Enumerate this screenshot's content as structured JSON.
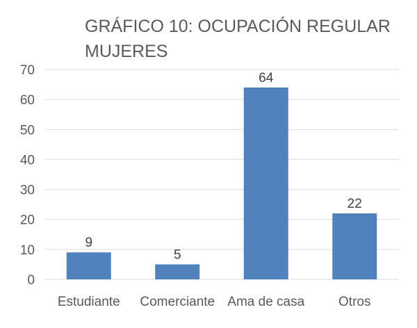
{
  "chart_data": {
    "type": "bar",
    "title_lines": [
      "GRÁFICO 10: OCUPACIÓN REGULAR",
      "MUJERES"
    ],
    "categories": [
      "Estudiante",
      "Comerciante",
      "Ama de casa",
      "Otros"
    ],
    "values": [
      9,
      5,
      64,
      22
    ],
    "ylim": [
      0,
      70
    ],
    "yticks": [
      "0",
      "10",
      "20",
      "30",
      "40",
      "50",
      "60",
      "70"
    ],
    "grid": true,
    "legend": "none",
    "bar_color": "#4f81bd",
    "gridline_color": "#d9d9d9"
  }
}
